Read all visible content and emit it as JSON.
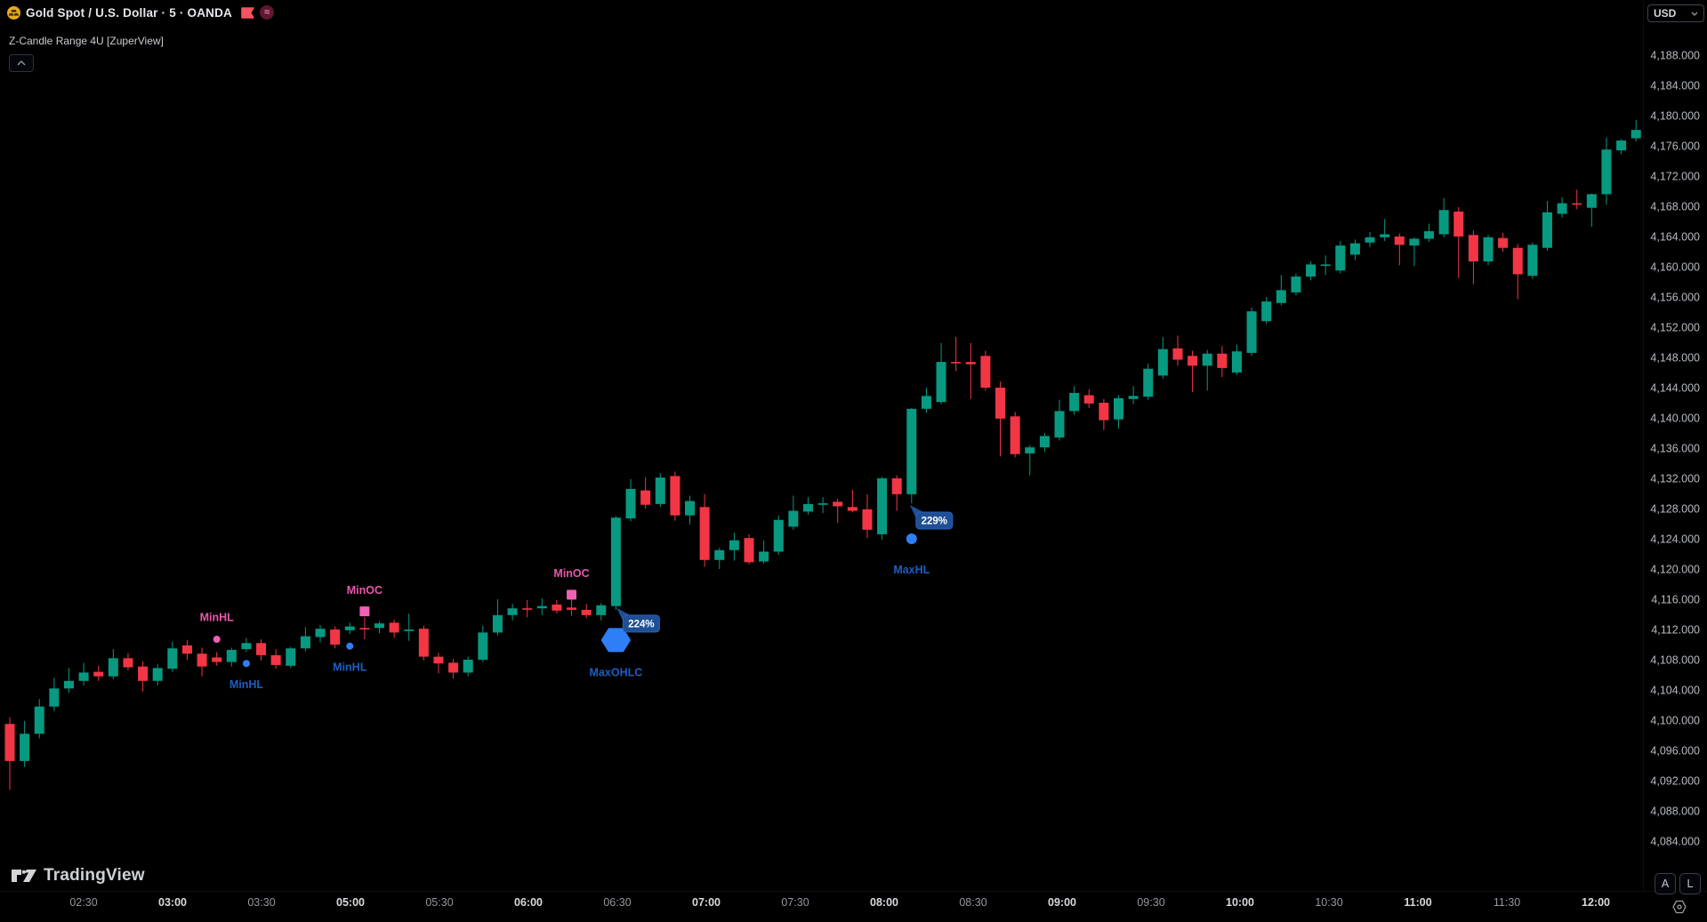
{
  "header": {
    "symbol_title": "Gold Spot / U.S. Dollar · 5 · OANDA",
    "indicator_label": "Z-Candle Range 4U [ZuperView]",
    "currency": "USD",
    "oanda_glyph": "≈"
  },
  "toolbar": {
    "auto_button": "A",
    "log_button": "L"
  },
  "footer": {
    "logo_text": "TradingView"
  },
  "colors": {
    "background": "#000000",
    "up": "#089981",
    "down": "#F23645",
    "marker_pink": "#f160b4",
    "marker_blue": "#2e7ef5",
    "label_pink": "#e957a8",
    "label_blue": "#1f5ec2",
    "badge_bg": "#1e4f97",
    "badge_border": "#2a62b5",
    "badge_text": "#ffffff",
    "axis_text": "#b7bac0",
    "axis_text_major": "#d7d9dd",
    "axis_text_minor": "#94979e"
  },
  "chart_data": {
    "type": "candlestick",
    "symbol": "Gold Spot / U.S. Dollar",
    "interval": "5",
    "exchange": "OANDA",
    "indicator": "Z-Candle Range 4U [ZuperView]",
    "price_axis": {
      "unit": "USD",
      "tick_step": 4,
      "ticks": [
        4188,
        4184,
        4180,
        4176,
        4172,
        4168,
        4164,
        4160,
        4156,
        4152,
        4148,
        4144,
        4140,
        4136,
        4132,
        4128,
        4124,
        4120,
        4116,
        4112,
        4108,
        4104,
        4100,
        4096,
        4092,
        4088,
        4084
      ],
      "decimals": 3
    },
    "time_axis": {
      "session_gap": {
        "after": "03:55",
        "resumes_at": "05:00"
      },
      "ticks": [
        {
          "label": "02:30",
          "major": false
        },
        {
          "label": "03:00",
          "major": true
        },
        {
          "label": "03:30",
          "major": false
        },
        {
          "label": "05:00",
          "major": true
        },
        {
          "label": "05:30",
          "major": false
        },
        {
          "label": "06:00",
          "major": true
        },
        {
          "label": "06:30",
          "major": false
        },
        {
          "label": "07:00",
          "major": true
        },
        {
          "label": "07:30",
          "major": false
        },
        {
          "label": "08:00",
          "major": true
        },
        {
          "label": "08:30",
          "major": false
        },
        {
          "label": "09:00",
          "major": true
        },
        {
          "label": "09:30",
          "major": false
        },
        {
          "label": "10:00",
          "major": true
        },
        {
          "label": "10:30",
          "major": false
        },
        {
          "label": "11:00",
          "major": true
        },
        {
          "label": "11:30",
          "major": false
        },
        {
          "label": "12:00",
          "major": true
        }
      ]
    },
    "candles": [
      [
        "02:05",
        4099.5,
        4100.4,
        4090.8,
        4094.6
      ],
      [
        "02:10",
        4094.6,
        4099.9,
        4093.8,
        4098.2
      ],
      [
        "02:15",
        4098.2,
        4102.8,
        4097.6,
        4101.8
      ],
      [
        "02:20",
        4101.8,
        4105.6,
        4101.2,
        4104.2
      ],
      [
        "02:25",
        4104.2,
        4106.9,
        4103.6,
        4105.2
      ],
      [
        "02:30",
        4105.2,
        4107.6,
        4104.6,
        4106.3
      ],
      [
        "02:35",
        4106.4,
        4107.2,
        4105.2,
        4105.8
      ],
      [
        "02:40",
        4105.8,
        4109.4,
        4105.4,
        4108.2
      ],
      [
        "02:45",
        4108.2,
        4108.9,
        4106.6,
        4107.0
      ],
      [
        "02:50",
        4107.1,
        4107.8,
        4103.8,
        4105.2
      ],
      [
        "02:55",
        4105.2,
        4107.4,
        4104.6,
        4106.9
      ],
      [
        "03:00",
        4106.8,
        4110.4,
        4106.4,
        4109.5
      ],
      [
        "03:05",
        4109.9,
        4110.6,
        4108.0,
        4108.8
      ],
      [
        "03:10",
        4108.8,
        4109.6,
        4105.8,
        4107.1
      ],
      [
        "03:15",
        4108.3,
        4109.0,
        4107.2,
        4107.7
      ],
      [
        "03:20",
        4107.7,
        4109.6,
        4107.1,
        4109.3
      ],
      [
        "03:25",
        4109.4,
        4110.9,
        4109.0,
        4110.2
      ],
      [
        "03:30",
        4110.2,
        4110.7,
        4107.9,
        4108.6
      ],
      [
        "03:35",
        4108.6,
        4109.4,
        4106.8,
        4107.3
      ],
      [
        "03:40",
        4107.2,
        4109.7,
        4106.9,
        4109.5
      ],
      [
        "03:45",
        4109.5,
        4112.3,
        4109.1,
        4111.1
      ],
      [
        "03:50",
        4111.0,
        4112.6,
        4110.3,
        4112.1
      ],
      [
        "03:55",
        4112.0,
        4112.4,
        4109.5,
        4110.0
      ],
      [
        "05:00",
        4111.9,
        4112.9,
        4111.4,
        4112.4
      ],
      [
        "05:05",
        4112.2,
        4113.6,
        4110.7,
        4112.0
      ],
      [
        "05:10",
        4112.2,
        4113.1,
        4111.5,
        4112.8
      ],
      [
        "05:15",
        4112.9,
        4113.3,
        4110.9,
        4111.6
      ],
      [
        "05:20",
        4111.8,
        4114.1,
        4110.5,
        4112.0
      ],
      [
        "05:25",
        4112.1,
        4112.5,
        4107.9,
        4108.4
      ],
      [
        "05:30",
        4108.4,
        4108.9,
        4106.2,
        4107.5
      ],
      [
        "05:35",
        4107.6,
        4108.1,
        4105.5,
        4106.3
      ],
      [
        "05:40",
        4106.3,
        4108.4,
        4105.8,
        4108.0
      ],
      [
        "05:45",
        4108.0,
        4112.5,
        4107.7,
        4111.6
      ],
      [
        "05:50",
        4111.6,
        4116.0,
        4111.2,
        4113.9
      ],
      [
        "05:55",
        4113.9,
        4115.4,
        4113.2,
        4114.8
      ],
      [
        "06:00",
        4114.8,
        4115.9,
        4113.6,
        4114.7
      ],
      [
        "06:05",
        4114.8,
        4116.1,
        4113.9,
        4115.1
      ],
      [
        "06:10",
        4115.3,
        4115.9,
        4114.1,
        4114.5
      ],
      [
        "06:15",
        4114.9,
        4116.2,
        4113.8,
        4114.6
      ],
      [
        "06:20",
        4114.6,
        4115.4,
        4113.5,
        4113.9
      ],
      [
        "06:25",
        4113.9,
        4115.5,
        4113.2,
        4115.2
      ],
      [
        "06:30",
        4115.1,
        4127.0,
        4114.6,
        4126.8
      ],
      [
        "06:35",
        4126.7,
        4131.9,
        4126.3,
        4130.6
      ],
      [
        "06:40",
        4130.4,
        4132.1,
        4128.0,
        4128.5
      ],
      [
        "06:45",
        4128.6,
        4132.7,
        4128.2,
        4132.1
      ],
      [
        "06:50",
        4132.3,
        4132.9,
        4126.4,
        4127.1
      ],
      [
        "06:55",
        4127.1,
        4129.7,
        4125.9,
        4129.0
      ],
      [
        "07:00",
        4128.2,
        4129.9,
        4120.3,
        4121.2
      ],
      [
        "07:05",
        4121.2,
        4122.8,
        4120.0,
        4122.5
      ],
      [
        "07:10",
        4122.5,
        4124.8,
        4121.1,
        4123.8
      ],
      [
        "07:15",
        4124.1,
        4124.6,
        4120.6,
        4120.9
      ],
      [
        "07:20",
        4121.0,
        4123.8,
        4120.7,
        4122.3
      ],
      [
        "07:25",
        4122.3,
        4127.1,
        4121.9,
        4126.5
      ],
      [
        "07:30",
        4125.6,
        4129.7,
        4125.2,
        4127.7
      ],
      [
        "07:35",
        4127.6,
        4129.5,
        4127.2,
        4128.6
      ],
      [
        "07:40",
        4128.5,
        4129.5,
        4127.4,
        4128.7
      ],
      [
        "07:45",
        4128.9,
        4129.3,
        4126.1,
        4128.3
      ],
      [
        "07:50",
        4128.2,
        4130.5,
        4127.5,
        4127.7
      ],
      [
        "07:55",
        4127.9,
        4129.9,
        4124.1,
        4125.2
      ],
      [
        "08:00",
        4124.6,
        4132.2,
        4123.9,
        4132.0
      ],
      [
        "08:05",
        4132.0,
        4132.4,
        4127.7,
        4129.9
      ],
      [
        "08:10",
        4129.9,
        4141.3,
        4128.7,
        4141.2
      ],
      [
        "08:15",
        4141.2,
        4144.0,
        4140.7,
        4142.9
      ],
      [
        "08:20",
        4142.1,
        4149.9,
        4141.8,
        4147.4
      ],
      [
        "08:25",
        4147.4,
        4150.7,
        4146.2,
        4147.3
      ],
      [
        "08:30",
        4147.4,
        4149.9,
        4142.5,
        4147.1
      ],
      [
        "08:35",
        4148.2,
        4148.9,
        4143.6,
        4144.0
      ],
      [
        "08:40",
        4144.0,
        4144.8,
        4134.9,
        4139.9
      ],
      [
        "08:45",
        4140.2,
        4140.8,
        4134.8,
        4135.2
      ],
      [
        "08:50",
        4135.3,
        4136.4,
        4132.4,
        4136.1
      ],
      [
        "08:55",
        4136.1,
        4138.0,
        4135.5,
        4137.6
      ],
      [
        "09:00",
        4137.4,
        4142.4,
        4137.0,
        4140.9
      ],
      [
        "09:05",
        4140.9,
        4144.2,
        4140.4,
        4143.3
      ],
      [
        "09:10",
        4143.0,
        4143.8,
        4141.3,
        4141.9
      ],
      [
        "09:15",
        4142.0,
        4142.5,
        4138.4,
        4139.7
      ],
      [
        "09:20",
        4139.8,
        4143.0,
        4138.6,
        4142.6
      ],
      [
        "09:25",
        4142.5,
        4144.2,
        4141.8,
        4142.9
      ],
      [
        "09:30",
        4142.8,
        4147.2,
        4142.4,
        4146.5
      ],
      [
        "09:35",
        4145.6,
        4150.7,
        4145.2,
        4149.1
      ],
      [
        "09:40",
        4149.2,
        4150.9,
        4146.9,
        4147.7
      ],
      [
        "09:45",
        4148.2,
        4148.9,
        4143.4,
        4146.9
      ],
      [
        "09:50",
        4146.9,
        4149.0,
        4143.6,
        4148.5
      ],
      [
        "09:55",
        4148.5,
        4149.5,
        4145.4,
        4146.6
      ],
      [
        "10:00",
        4146.0,
        4149.7,
        4145.7,
        4148.8
      ],
      [
        "10:05",
        4148.6,
        4154.6,
        4148.2,
        4154.1
      ],
      [
        "10:10",
        4152.8,
        4156.0,
        4152.4,
        4155.4
      ],
      [
        "10:15",
        4155.2,
        4158.9,
        4154.9,
        4156.9
      ],
      [
        "10:20",
        4156.6,
        4159.1,
        4156.2,
        4158.7
      ],
      [
        "10:25",
        4158.7,
        4160.7,
        4158.2,
        4160.3
      ],
      [
        "10:30",
        4160.2,
        4161.5,
        4158.9,
        4160.3
      ],
      [
        "10:35",
        4159.5,
        4163.4,
        4159.1,
        4162.8
      ],
      [
        "10:40",
        4161.6,
        4163.6,
        4160.9,
        4163.1
      ],
      [
        "10:45",
        4163.2,
        4164.6,
        4162.6,
        4163.9
      ],
      [
        "10:50",
        4163.9,
        4166.3,
        4163.4,
        4164.3
      ],
      [
        "10:55",
        4164.0,
        4164.4,
        4160.2,
        4162.9
      ],
      [
        "11:00",
        4162.8,
        4163.9,
        4160.1,
        4163.7
      ],
      [
        "11:05",
        4163.7,
        4165.7,
        4163.3,
        4164.7
      ],
      [
        "11:10",
        4164.3,
        4169.1,
        4163.9,
        4167.5
      ],
      [
        "11:15",
        4167.3,
        4167.9,
        4158.5,
        4164.0
      ],
      [
        "11:20",
        4164.2,
        4164.8,
        4157.7,
        4160.7
      ],
      [
        "11:25",
        4160.7,
        4164.2,
        4160.2,
        4163.9
      ],
      [
        "11:30",
        4163.8,
        4164.5,
        4162.0,
        4162.5
      ],
      [
        "11:35",
        4162.5,
        4163.0,
        4155.7,
        4159.0
      ],
      [
        "11:40",
        4158.8,
        4163.2,
        4158.4,
        4162.9
      ],
      [
        "11:45",
        4162.5,
        4168.7,
        4162.1,
        4167.2
      ],
      [
        "11:50",
        4167.0,
        4169.2,
        4166.5,
        4168.4
      ],
      [
        "11:55",
        4168.4,
        4170.2,
        4167.6,
        4168.3
      ],
      [
        "12:00",
        4167.8,
        4169.7,
        4165.3,
        4169.6
      ],
      [
        "12:05",
        4169.6,
        4177.1,
        4168.2,
        4175.5
      ],
      [
        "12:10",
        4175.4,
        4176.9,
        4174.9,
        4176.7
      ],
      [
        "12:15",
        4177.0,
        4179.4,
        4176.6,
        4178.1
      ]
    ],
    "markers": [
      {
        "shape": "circle",
        "size": 8,
        "color_key": "marker_pink",
        "label_color_key": "label_pink",
        "time": "03:15",
        "price": 4110.7,
        "label": "MinHL",
        "label_price": 4113.6,
        "label_pos": "above"
      },
      {
        "shape": "circle",
        "size": 8,
        "color_key": "marker_blue",
        "label_color_key": "label_blue",
        "time": "03:25",
        "price": 4107.5,
        "label": "MinHL",
        "label_price": 4104.7,
        "label_pos": "below"
      },
      {
        "shape": "circle",
        "size": 8,
        "color_key": "marker_blue",
        "label_color_key": "label_blue",
        "time": "05:00",
        "price": 4109.8,
        "label": "MinHL",
        "label_price": 4107.0,
        "label_pos": "below"
      },
      {
        "shape": "square",
        "size": 11,
        "color_key": "marker_pink",
        "label_color_key": "label_pink",
        "time": "05:05",
        "price": 4114.4,
        "label": "MinOC",
        "label_price": 4117.2,
        "label_pos": "above"
      },
      {
        "shape": "square",
        "size": 11,
        "color_key": "marker_pink",
        "label_color_key": "label_pink",
        "time": "06:15",
        "price": 4116.6,
        "label": "MinOC",
        "label_price": 4119.4,
        "label_pos": "above"
      },
      {
        "shape": "hexagon",
        "size": 30,
        "color_key": "marker_blue",
        "label_color_key": "label_blue",
        "time": "06:30",
        "price": 4110.6,
        "label": "MaxOHLC",
        "label_price": 4106.3,
        "label_pos": "below",
        "badge": "224%",
        "badge_offset": [
          8,
          -28
        ]
      },
      {
        "shape": "circle",
        "size": 12,
        "color_key": "marker_blue",
        "label_color_key": "label_blue",
        "time": "08:10",
        "price": 4124.0,
        "label": "MaxHL",
        "label_price": 4119.9,
        "label_pos": "below",
        "badge": "229%",
        "badge_offset": [
          5,
          -30
        ]
      }
    ]
  }
}
